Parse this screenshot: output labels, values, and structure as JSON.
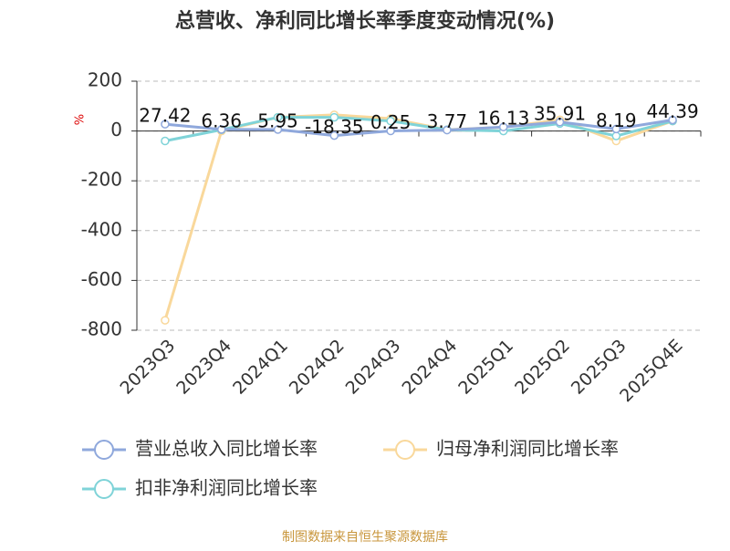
{
  "chart_data": {
    "type": "line",
    "title": "总营收、净利同比增长率季度变动情况(%)",
    "y_label": "%",
    "source": "制图数据来自恒生聚源数据库",
    "categories": [
      "2023Q3",
      "2023Q4",
      "2024Q1",
      "2024Q2",
      "2024Q3",
      "2024Q4",
      "2025Q1",
      "2025Q2",
      "2025Q3",
      "2025Q4E"
    ],
    "series": [
      {
        "name": "营业总收入同比增长率",
        "color": "#8fa8dc",
        "values": [
          27.42,
          6.36,
          5.95,
          -18.35,
          0.25,
          3.77,
          16.13,
          35.91,
          8.19,
          44.39
        ]
      },
      {
        "name": "归母净利润同比增长率",
        "color": "#f9d89b",
        "values": [
          -760,
          0,
          55,
          65,
          50,
          5,
          15,
          45,
          -40,
          40
        ]
      },
      {
        "name": "扣非净利润同比增长率",
        "color": "#7fd3d8",
        "values": [
          -40,
          5,
          55,
          55,
          40,
          5,
          0,
          30,
          -20,
          40
        ]
      }
    ],
    "ylim": [
      -800,
      200
    ],
    "yticks": [
      -800,
      -600,
      -400,
      -200,
      0,
      200
    ],
    "grid": true,
    "legend": "bottom"
  }
}
